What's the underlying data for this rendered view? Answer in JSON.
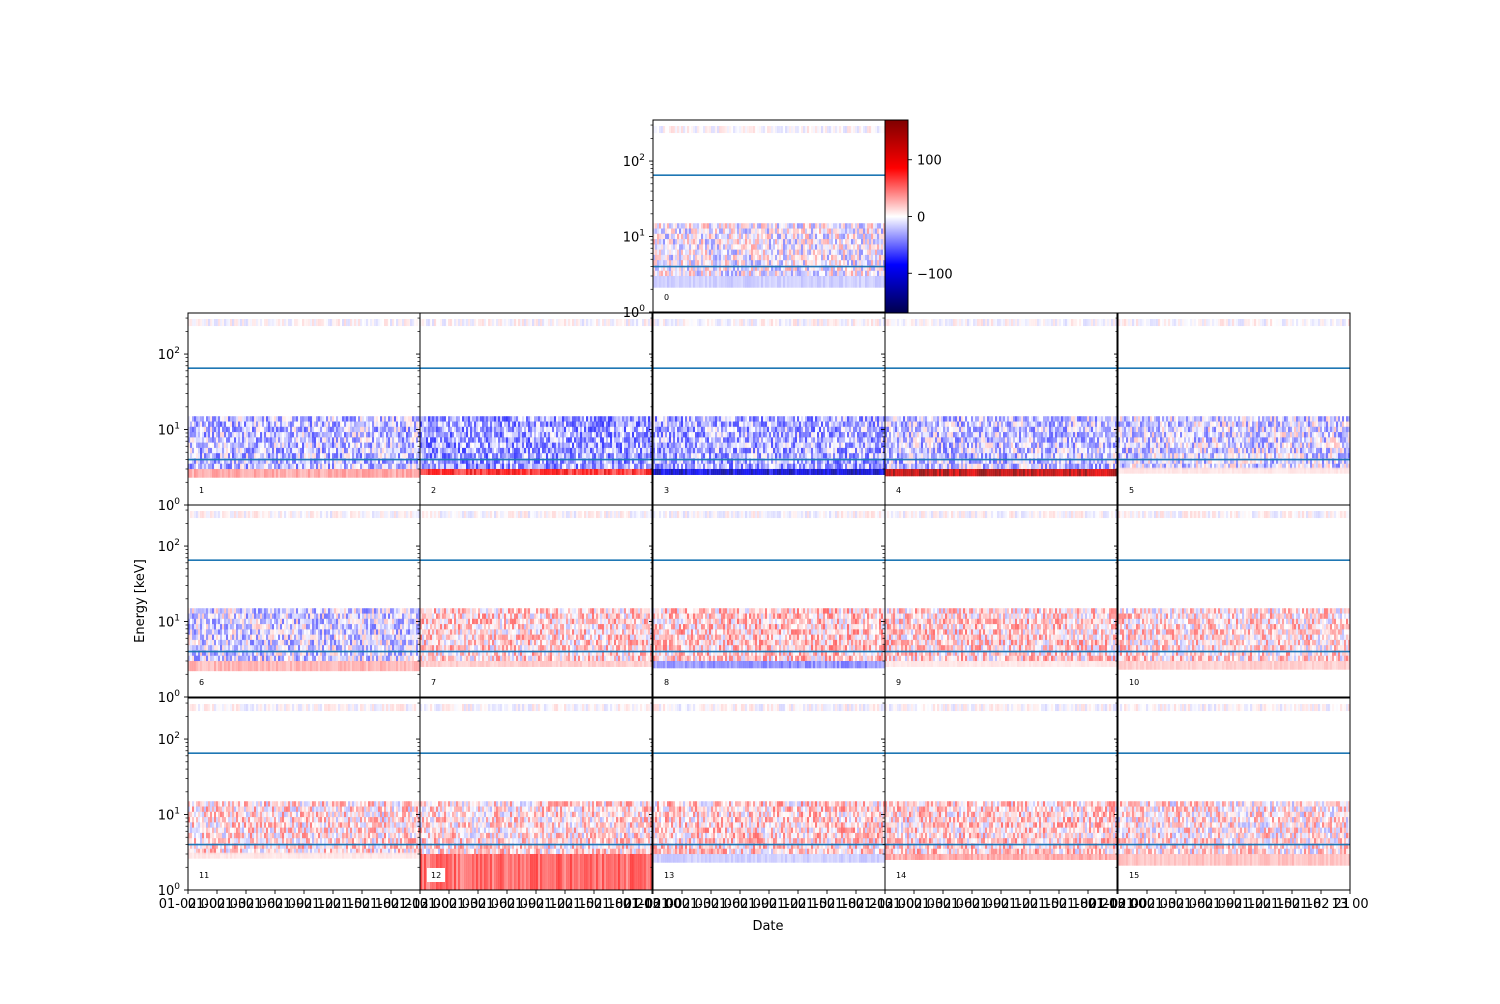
{
  "chart_data": {
    "type": "heatmap",
    "layout": "grid of 16 panels sharing axes",
    "xlabel": "Date",
    "ylabel": "Energy [keV]",
    "y_scale": "log",
    "y_ticks": [
      {
        "value": 1,
        "label": "10",
        "exp": "0"
      },
      {
        "value": 10,
        "label": "10",
        "exp": "1"
      },
      {
        "value": 100,
        "label": "10",
        "exp": "2"
      }
    ],
    "x_tick_labels": [
      "01-02 00",
      "01-02 03",
      "01-02 06",
      "01-02 09",
      "01-02 12",
      "01-02 15",
      "01-02 18",
      "01-02 21",
      "01-03 00"
    ],
    "x_tick_labels_last_panel": [
      "01-02 00",
      "01-02 03",
      "01-02 06",
      "01-02 09",
      "01-02 12",
      "01-02 15",
      "01-02 18",
      "01-02 21",
      "13 00"
    ],
    "colorbar": {
      "cmap": "seismic",
      "range": [
        -170,
        170
      ],
      "ticks": [
        100,
        0,
        -100
      ],
      "tick_labels": [
        "100",
        "0",
        "−100"
      ]
    },
    "threshold_lines_keV": [
      4,
      65
    ],
    "threshold_color": "#1f77b4",
    "panels": [
      {
        "label": "0",
        "low_cut": 2.1,
        "band_low": -20,
        "band_mid": -5,
        "mode": "red"
      },
      {
        "label": "1",
        "low_cut": 2.3,
        "band_low": 35,
        "band_mid": -40,
        "mode": "blue"
      },
      {
        "label": "2",
        "low_cut": 2.5,
        "band_low": 90,
        "band_mid": -60,
        "mode": "blue"
      },
      {
        "label": "3",
        "low_cut": 2.5,
        "band_low": -120,
        "band_mid": -50,
        "mode": "blue"
      },
      {
        "label": "4",
        "low_cut": 2.4,
        "band_low": 150,
        "band_mid": -35,
        "mode": "blue"
      },
      {
        "label": "5",
        "low_cut": 2.6,
        "band_low": 10,
        "band_mid": -25,
        "mode": "mixed"
      },
      {
        "label": "6",
        "low_cut": 2.2,
        "band_low": 30,
        "band_mid": -25,
        "mode": "mixed"
      },
      {
        "label": "7",
        "low_cut": 2.5,
        "band_low": 20,
        "band_mid": 25,
        "mode": "mixed"
      },
      {
        "label": "8",
        "low_cut": 2.4,
        "band_low": -45,
        "band_mid": 30,
        "mode": "mixed"
      },
      {
        "label": "9",
        "low_cut": 2.5,
        "band_low": 10,
        "band_mid": 25,
        "mode": "mixed"
      },
      {
        "label": "10",
        "low_cut": 2.3,
        "band_low": 20,
        "band_mid": 20,
        "mode": "mixed"
      },
      {
        "label": "11",
        "low_cut": 2.6,
        "band_low": 10,
        "band_mid": 20,
        "mode": "mixed"
      },
      {
        "label": "12",
        "low_cut": 1.0,
        "band_low": 60,
        "band_mid": 20,
        "mode": "mixed"
      },
      {
        "label": "13",
        "low_cut": 2.3,
        "band_low": -20,
        "band_mid": 25,
        "mode": "mixed"
      },
      {
        "label": "14",
        "low_cut": 2.5,
        "band_low": 35,
        "band_mid": 25,
        "mode": "mixed"
      },
      {
        "label": "15",
        "low_cut": 2.1,
        "band_low": 25,
        "band_mid": 15,
        "mode": "mixed"
      }
    ]
  }
}
